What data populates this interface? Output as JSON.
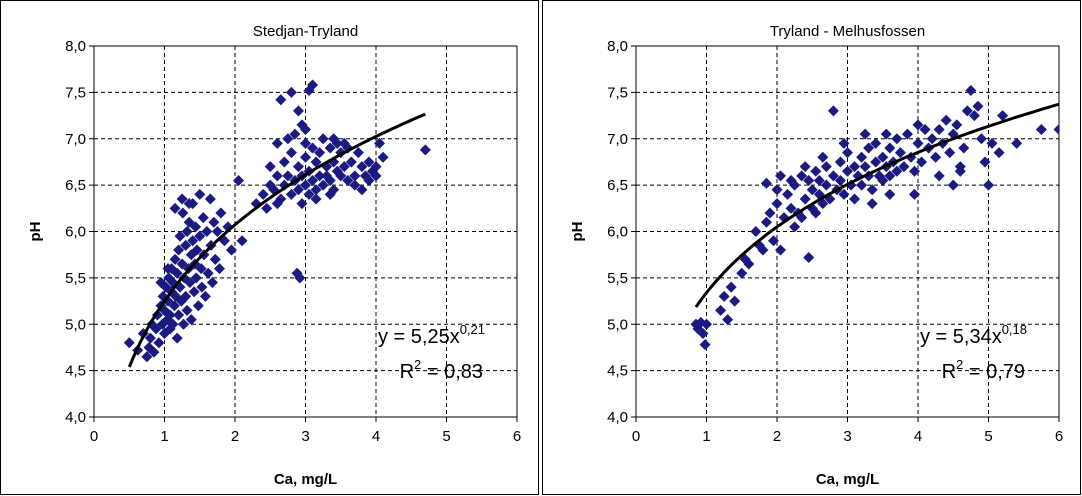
{
  "chart_data": [
    {
      "type": "scatter",
      "title": "Stedjan-Tryland",
      "xlabel": "Ca, mg/L",
      "ylabel": "pH",
      "xlim": [
        0,
        6
      ],
      "ylim": [
        4.0,
        8.0
      ],
      "x_ticks": [
        "0",
        "1",
        "2",
        "3",
        "4",
        "5",
        "6"
      ],
      "y_ticks": [
        "4,0",
        "4,5",
        "5,0",
        "5,5",
        "6,0",
        "6,5",
        "7,0",
        "7,5",
        "8,0"
      ],
      "grid": true,
      "marker_color": "#1a1a80",
      "trend": {
        "a": 5.25,
        "b": 0.21,
        "x_range": [
          0.5,
          4.7
        ]
      },
      "equation": {
        "prefix": "y = 5,25x",
        "exponent": "0,21",
        "r2_label": "R",
        "r2_sup": "2",
        "r2_value": " = 0,83"
      },
      "points": [
        [
          0.5,
          4.8
        ],
        [
          0.62,
          4.72
        ],
        [
          0.7,
          4.9
        ],
        [
          0.75,
          4.65
        ],
        [
          0.78,
          4.75
        ],
        [
          0.8,
          4.85
        ],
        [
          0.82,
          5.0
        ],
        [
          0.85,
          4.7
        ],
        [
          0.88,
          4.95
        ],
        [
          0.9,
          5.1
        ],
        [
          0.92,
          4.8
        ],
        [
          0.95,
          5.2
        ],
        [
          0.97,
          5.0
        ],
        [
          0.98,
          5.3
        ],
        [
          1.0,
          4.9
        ],
        [
          1.0,
          5.15
        ],
        [
          1.02,
          5.4
        ],
        [
          1.04,
          5.05
        ],
        [
          1.05,
          5.25
        ],
        [
          1.06,
          5.5
        ],
        [
          1.08,
          5.1
        ],
        [
          1.08,
          4.95
        ],
        [
          1.1,
          5.35
        ],
        [
          1.1,
          5.6
        ],
        [
          1.12,
          5.0
        ],
        [
          1.12,
          5.45
        ],
        [
          1.14,
          5.2
        ],
        [
          1.15,
          5.7
        ],
        [
          1.16,
          5.3
        ],
        [
          1.18,
          5.55
        ],
        [
          1.18,
          4.85
        ],
        [
          1.2,
          5.8
        ],
        [
          1.2,
          5.1
        ],
        [
          1.22,
          5.4
        ],
        [
          1.22,
          5.95
        ],
        [
          1.24,
          5.25
        ],
        [
          1.25,
          5.65
        ],
        [
          1.26,
          6.2
        ],
        [
          1.27,
          5.0
        ],
        [
          1.28,
          5.5
        ],
        [
          1.3,
          5.85
        ],
        [
          1.3,
          5.3
        ],
        [
          1.32,
          6.0
        ],
        [
          1.32,
          5.15
        ],
        [
          1.34,
          5.6
        ],
        [
          1.35,
          6.1
        ],
        [
          1.36,
          5.45
        ],
        [
          1.38,
          5.75
        ],
        [
          1.38,
          5.05
        ],
        [
          1.4,
          6.3
        ],
        [
          1.4,
          5.9
        ],
        [
          1.42,
          5.35
        ],
        [
          1.43,
          5.65
        ],
        [
          1.44,
          6.05
        ],
        [
          1.45,
          5.5
        ],
        [
          1.46,
          5.8
        ],
        [
          1.48,
          5.2
        ],
        [
          1.5,
          6.4
        ],
        [
          1.5,
          5.95
        ],
        [
          1.52,
          5.6
        ],
        [
          1.53,
          5.4
        ],
        [
          1.55,
          6.15
        ],
        [
          1.56,
          5.75
        ],
        [
          1.58,
          5.3
        ],
        [
          1.6,
          6.0
        ],
        [
          1.62,
          5.55
        ],
        [
          1.65,
          6.35
        ],
        [
          1.66,
          5.85
        ],
        [
          1.68,
          5.45
        ],
        [
          1.7,
          6.1
        ],
        [
          1.72,
          5.7
        ],
        [
          1.75,
          6.0
        ],
        [
          1.78,
          5.6
        ],
        [
          1.8,
          6.2
        ],
        [
          1.85,
          5.9
        ],
        [
          1.9,
          6.05
        ],
        [
          1.95,
          5.8
        ],
        [
          2.05,
          6.55
        ],
        [
          2.1,
          5.9
        ],
        [
          1.15,
          6.25
        ],
        [
          1.25,
          6.35
        ],
        [
          1.35,
          6.3
        ],
        [
          1.05,
          5.6
        ],
        [
          0.95,
          5.45
        ],
        [
          2.4,
          6.4
        ],
        [
          2.5,
          6.7
        ],
        [
          2.55,
          6.45
        ],
        [
          2.6,
          6.6
        ],
        [
          2.65,
          6.35
        ],
        [
          2.7,
          6.75
        ],
        [
          2.7,
          6.5
        ],
        [
          2.75,
          6.6
        ],
        [
          2.8,
          6.4
        ],
        [
          2.8,
          6.85
        ],
        [
          2.85,
          6.55
        ],
        [
          2.9,
          6.7
        ],
        [
          2.9,
          6.45
        ],
        [
          2.95,
          6.6
        ],
        [
          3.0,
          6.8
        ],
        [
          3.0,
          6.5
        ],
        [
          3.05,
          6.65
        ],
        [
          3.05,
          6.4
        ],
        [
          3.1,
          6.9
        ],
        [
          3.1,
          6.55
        ],
        [
          3.15,
          6.75
        ],
        [
          3.15,
          6.45
        ],
        [
          3.2,
          6.6
        ],
        [
          3.2,
          6.85
        ],
        [
          3.25,
          6.5
        ],
        [
          3.3,
          6.7
        ],
        [
          3.3,
          6.6
        ],
        [
          3.35,
          6.9
        ],
        [
          3.35,
          6.55
        ],
        [
          3.4,
          6.75
        ],
        [
          3.4,
          6.45
        ],
        [
          3.45,
          6.65
        ],
        [
          3.5,
          6.85
        ],
        [
          3.5,
          6.6
        ],
        [
          3.55,
          6.7
        ],
        [
          3.6,
          6.55
        ],
        [
          3.6,
          6.9
        ],
        [
          3.65,
          6.75
        ],
        [
          3.7,
          6.6
        ],
        [
          3.75,
          6.85
        ],
        [
          3.8,
          6.7
        ],
        [
          3.85,
          6.6
        ],
        [
          3.9,
          6.75
        ],
        [
          3.95,
          6.65
        ],
        [
          4.0,
          6.6
        ],
        [
          4.05,
          6.95
        ],
        [
          4.1,
          6.8
        ],
        [
          4.7,
          6.88
        ],
        [
          2.65,
          7.42
        ],
        [
          2.8,
          7.5
        ],
        [
          2.9,
          7.3
        ],
        [
          2.95,
          7.15
        ],
        [
          3.0,
          7.1
        ],
        [
          3.05,
          7.52
        ],
        [
          3.1,
          7.58
        ],
        [
          2.85,
          7.05
        ],
        [
          2.88,
          5.55
        ],
        [
          2.92,
          5.5
        ],
        [
          2.6,
          6.95
        ],
        [
          2.75,
          7.0
        ],
        [
          3.25,
          7.0
        ],
        [
          3.45,
          6.95
        ],
        [
          2.5,
          6.5
        ],
        [
          2.3,
          6.3
        ],
        [
          2.45,
          6.25
        ],
        [
          3.7,
          6.5
        ],
        [
          3.9,
          6.55
        ],
        [
          4.0,
          6.7
        ],
        [
          3.55,
          6.95
        ],
        [
          3.15,
          6.35
        ],
        [
          2.95,
          6.3
        ],
        [
          3.35,
          6.4
        ],
        [
          3.8,
          6.45
        ],
        [
          2.6,
          6.3
        ],
        [
          3.0,
          6.95
        ],
        [
          3.4,
          7.0
        ]
      ]
    },
    {
      "type": "scatter",
      "title": "Tryland - Melhusfossen",
      "xlabel": "Ca, mg/L",
      "ylabel": "pH",
      "xlim": [
        0,
        6
      ],
      "ylim": [
        4.0,
        8.0
      ],
      "x_ticks": [
        "0",
        "1",
        "2",
        "3",
        "4",
        "5",
        "6"
      ],
      "y_ticks": [
        "4,0",
        "4,5",
        "5,0",
        "5,5",
        "6,0",
        "6,5",
        "7,0",
        "7,5",
        "8,0"
      ],
      "grid": true,
      "marker_color": "#1a1a80",
      "trend": {
        "a": 5.34,
        "b": 0.18,
        "x_range": [
          0.85,
          6.0
        ]
      },
      "equation": {
        "prefix": "y = 5,34x",
        "exponent": "0,18",
        "r2_label": "R",
        "r2_sup": "2",
        "r2_value": " = 0,79"
      },
      "points": [
        [
          0.85,
          5.0
        ],
        [
          0.88,
          4.95
        ],
        [
          0.92,
          5.02
        ],
        [
          0.95,
          4.9
        ],
        [
          0.98,
          4.78
        ],
        [
          1.0,
          5.0
        ],
        [
          1.2,
          5.15
        ],
        [
          1.25,
          5.3
        ],
        [
          1.3,
          5.05
        ],
        [
          1.35,
          5.4
        ],
        [
          1.4,
          5.25
        ],
        [
          1.5,
          5.55
        ],
        [
          1.55,
          5.7
        ],
        [
          1.6,
          5.65
        ],
        [
          1.7,
          6.0
        ],
        [
          1.75,
          5.85
        ],
        [
          1.8,
          5.8
        ],
        [
          1.85,
          6.1
        ],
        [
          1.85,
          6.52
        ],
        [
          1.9,
          6.2
        ],
        [
          1.95,
          5.9
        ],
        [
          2.0,
          6.45
        ],
        [
          2.0,
          6.3
        ],
        [
          2.05,
          6.6
        ],
        [
          2.1,
          6.15
        ],
        [
          2.15,
          6.4
        ],
        [
          2.2,
          6.25
        ],
        [
          2.25,
          6.5
        ],
        [
          2.3,
          6.2
        ],
        [
          2.35,
          6.6
        ],
        [
          2.4,
          6.35
        ],
        [
          2.45,
          5.72
        ],
        [
          2.45,
          6.55
        ],
        [
          2.5,
          6.45
        ],
        [
          2.5,
          6.25
        ],
        [
          2.55,
          6.65
        ],
        [
          2.6,
          6.4
        ],
        [
          2.6,
          6.55
        ],
        [
          2.65,
          6.3
        ],
        [
          2.7,
          6.7
        ],
        [
          2.7,
          6.5
        ],
        [
          2.75,
          6.35
        ],
        [
          2.8,
          6.6
        ],
        [
          2.8,
          7.3
        ],
        [
          2.85,
          6.45
        ],
        [
          2.9,
          6.75
        ],
        [
          2.9,
          6.55
        ],
        [
          2.95,
          6.4
        ],
        [
          3.0,
          6.65
        ],
        [
          3.0,
          6.85
        ],
        [
          3.05,
          6.5
        ],
        [
          3.1,
          6.7
        ],
        [
          3.1,
          6.35
        ],
        [
          3.15,
          6.6
        ],
        [
          3.2,
          6.8
        ],
        [
          3.2,
          6.5
        ],
        [
          3.25,
          6.7
        ],
        [
          3.3,
          6.9
        ],
        [
          3.3,
          6.6
        ],
        [
          3.35,
          6.45
        ],
        [
          3.4,
          6.75
        ],
        [
          3.4,
          6.95
        ],
        [
          3.45,
          6.6
        ],
        [
          3.5,
          6.8
        ],
        [
          3.5,
          6.55
        ],
        [
          3.55,
          6.7
        ],
        [
          3.6,
          6.9
        ],
        [
          3.6,
          6.6
        ],
        [
          3.65,
          6.75
        ],
        [
          3.7,
          7.0
        ],
        [
          3.7,
          6.65
        ],
        [
          3.75,
          6.85
        ],
        [
          3.8,
          6.7
        ],
        [
          3.85,
          7.05
        ],
        [
          3.9,
          6.8
        ],
        [
          3.95,
          6.65
        ],
        [
          4.0,
          6.95
        ],
        [
          4.0,
          7.15
        ],
        [
          4.05,
          6.75
        ],
        [
          4.1,
          7.1
        ],
        [
          4.15,
          6.9
        ],
        [
          4.2,
          7.0
        ],
        [
          4.25,
          6.8
        ],
        [
          4.3,
          7.1
        ],
        [
          4.35,
          6.95
        ],
        [
          4.4,
          7.2
        ],
        [
          4.45,
          6.85
        ],
        [
          4.5,
          7.05
        ],
        [
          4.5,
          6.5
        ],
        [
          4.55,
          7.15
        ],
        [
          4.6,
          6.7
        ],
        [
          4.65,
          6.9
        ],
        [
          4.7,
          7.3
        ],
        [
          4.75,
          7.52
        ],
        [
          4.8,
          7.25
        ],
        [
          4.85,
          7.35
        ],
        [
          4.9,
          7.0
        ],
        [
          4.95,
          6.75
        ],
        [
          5.0,
          6.5
        ],
        [
          5.05,
          6.95
        ],
        [
          5.15,
          6.85
        ],
        [
          5.2,
          7.25
        ],
        [
          5.4,
          6.95
        ],
        [
          5.75,
          7.1
        ],
        [
          6.0,
          7.1
        ],
        [
          2.05,
          5.8
        ],
        [
          2.25,
          6.05
        ],
        [
          2.35,
          6.15
        ],
        [
          2.55,
          6.2
        ],
        [
          3.35,
          6.3
        ],
        [
          3.6,
          6.4
        ],
        [
          3.95,
          6.4
        ],
        [
          4.3,
          6.6
        ],
        [
          4.6,
          6.65
        ],
        [
          2.4,
          6.7
        ],
        [
          2.65,
          6.8
        ],
        [
          2.95,
          6.95
        ],
        [
          3.25,
          7.05
        ],
        [
          3.55,
          7.05
        ],
        [
          2.2,
          6.55
        ]
      ]
    }
  ]
}
